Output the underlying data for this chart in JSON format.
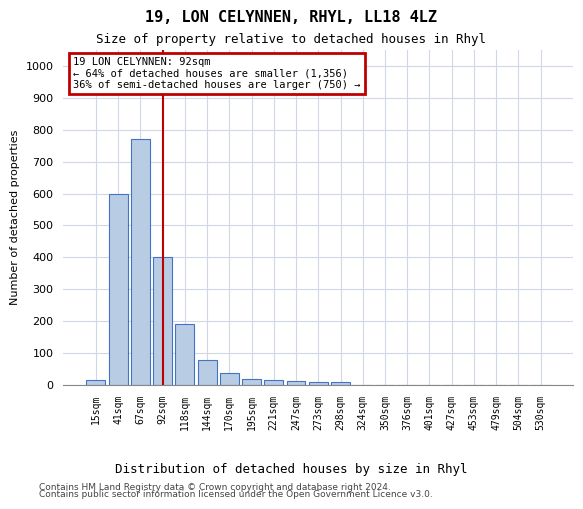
{
  "title": "19, LON CELYNNEN, RHYL, LL18 4LZ",
  "subtitle": "Size of property relative to detached houses in Rhyl",
  "xlabel_bottom": "Distribution of detached houses by size in Rhyl",
  "ylabel": "Number of detached properties",
  "categories": [
    "15sqm",
    "41sqm",
    "67sqm",
    "92sqm",
    "118sqm",
    "144sqm",
    "170sqm",
    "195sqm",
    "221sqm",
    "247sqm",
    "273sqm",
    "298sqm",
    "324sqm",
    "350sqm",
    "376sqm",
    "401sqm",
    "427sqm",
    "453sqm",
    "479sqm",
    "504sqm",
    "530sqm"
  ],
  "values": [
    15,
    600,
    770,
    400,
    190,
    78,
    38,
    18,
    15,
    12,
    10,
    8,
    0,
    0,
    0,
    0,
    0,
    0,
    0,
    0,
    0
  ],
  "bar_color": "#b8cce4",
  "bar_edge_color": "#4472c4",
  "vline_x": 3,
  "vline_color": "#c00000",
  "annotation_text": "19 LON CELYNNEN: 92sqm\n← 64% of detached houses are smaller (1,356)\n36% of semi-detached houses are larger (750) →",
  "annotation_box_color": "#c00000",
  "annotation_text_color": "#000000",
  "ylim": [
    0,
    1050
  ],
  "yticks": [
    0,
    100,
    200,
    300,
    400,
    500,
    600,
    700,
    800,
    900,
    1000
  ],
  "background_color": "#ffffff",
  "grid_color": "#d0d8e8",
  "footer_line1": "Contains HM Land Registry data © Crown copyright and database right 2024.",
  "footer_line2": "Contains public sector information licensed under the Open Government Licence v3.0."
}
